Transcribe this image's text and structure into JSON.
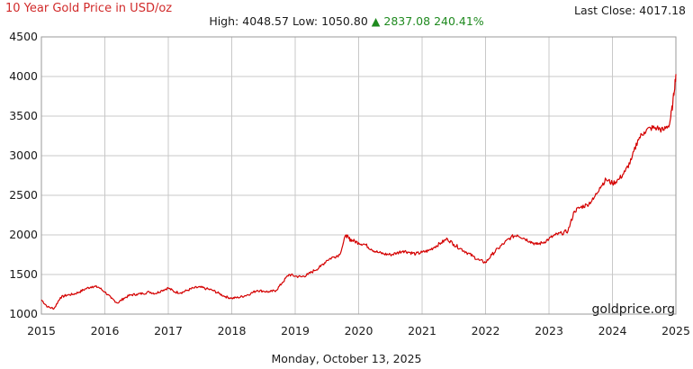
{
  "header": {
    "title": "10 Year Gold Price in USD/oz",
    "high_label": "High:",
    "high_value": "4048.57",
    "low_label": "Low:",
    "low_value": "1050.80",
    "change_arrow": "▲",
    "change_value": "2837.08",
    "change_pct": "240.41%",
    "last_close_label": "Last Close:",
    "last_close_value": "4017.18"
  },
  "footer": {
    "date": "Monday, October 13, 2025"
  },
  "watermark": "goldprice.org",
  "colors": {
    "title": "#d12a2a",
    "line": "#d40000",
    "change_up": "#1f8a1f",
    "grid": "#c8c8c8"
  },
  "chart_data": {
    "type": "line",
    "title": "10 Year Gold Price in USD/oz",
    "xlabel": "",
    "ylabel": "",
    "xlim": [
      2015,
      2025
    ],
    "ylim": [
      1000,
      4500
    ],
    "x_ticks": [
      "2015",
      "2016",
      "2017",
      "2018",
      "2019",
      "2020",
      "2021",
      "2022",
      "2023",
      "2024",
      "2025"
    ],
    "y_ticks": [
      "1000",
      "1500",
      "2000",
      "2500",
      "3000",
      "3500",
      "4000",
      "4500"
    ],
    "grid": true,
    "series": [
      {
        "x": [
          2015.0,
          2015.1,
          2015.2,
          2015.3,
          2015.4,
          2015.5,
          2015.6,
          2015.7,
          2015.8,
          2015.9,
          2016.0,
          2016.1,
          2016.2,
          2016.3,
          2016.4,
          2016.5,
          2016.6,
          2016.7,
          2016.8,
          2016.9,
          2017.0,
          2017.1,
          2017.2,
          2017.3,
          2017.4,
          2017.5,
          2017.6,
          2017.7,
          2017.8,
          2017.9,
          2018.0,
          2018.1,
          2018.2,
          2018.3,
          2018.4,
          2018.5,
          2018.6,
          2018.7,
          2018.8,
          2018.9,
          2019.0,
          2019.1,
          2019.2,
          2019.3,
          2019.4,
          2019.5,
          2019.6,
          2019.7,
          2019.8,
          2019.85,
          2019.9,
          2020.0,
          2020.1,
          2020.2,
          2020.3,
          2020.4,
          2020.5,
          2020.6,
          2020.7,
          2020.8,
          2020.9,
          2021.0,
          2021.1,
          2021.2,
          2021.3,
          2021.4,
          2021.5,
          2021.6,
          2021.7,
          2021.8,
          2021.9,
          2022.0,
          2022.1,
          2022.2,
          2022.3,
          2022.4,
          2022.5,
          2022.6,
          2022.7,
          2022.8,
          2022.9,
          2023.0,
          2023.1,
          2023.2,
          2023.3,
          2023.4,
          2023.5,
          2023.6,
          2023.7,
          2023.8,
          2023.9,
          2024.0,
          2024.1,
          2024.2,
          2024.3,
          2024.4,
          2024.5,
          2024.6,
          2024.7,
          2024.8,
          2024.9,
          2024.95,
          2025.0
        ],
        "y": [
          1180,
          1090,
          1070,
          1210,
          1240,
          1250,
          1280,
          1320,
          1350,
          1340,
          1280,
          1200,
          1140,
          1200,
          1240,
          1250,
          1260,
          1280,
          1260,
          1300,
          1330,
          1280,
          1270,
          1300,
          1330,
          1340,
          1320,
          1300,
          1260,
          1220,
          1200,
          1210,
          1230,
          1260,
          1300,
          1290,
          1280,
          1300,
          1400,
          1500,
          1480,
          1470,
          1500,
          1550,
          1600,
          1680,
          1720,
          1750,
          2000,
          1950,
          1930,
          1900,
          1880,
          1820,
          1780,
          1760,
          1750,
          1770,
          1800,
          1780,
          1760,
          1780,
          1800,
          1850,
          1900,
          1950,
          1880,
          1830,
          1780,
          1730,
          1680,
          1650,
          1750,
          1830,
          1900,
          1970,
          2000,
          1960,
          1920,
          1880,
          1900,
          1950,
          2000,
          2020,
          2050,
          2300,
          2350,
          2380,
          2450,
          2600,
          2700,
          2650,
          2700,
          2800,
          2950,
          3200,
          3300,
          3350,
          3350,
          3320,
          3400,
          3650,
          4030
        ]
      }
    ]
  }
}
